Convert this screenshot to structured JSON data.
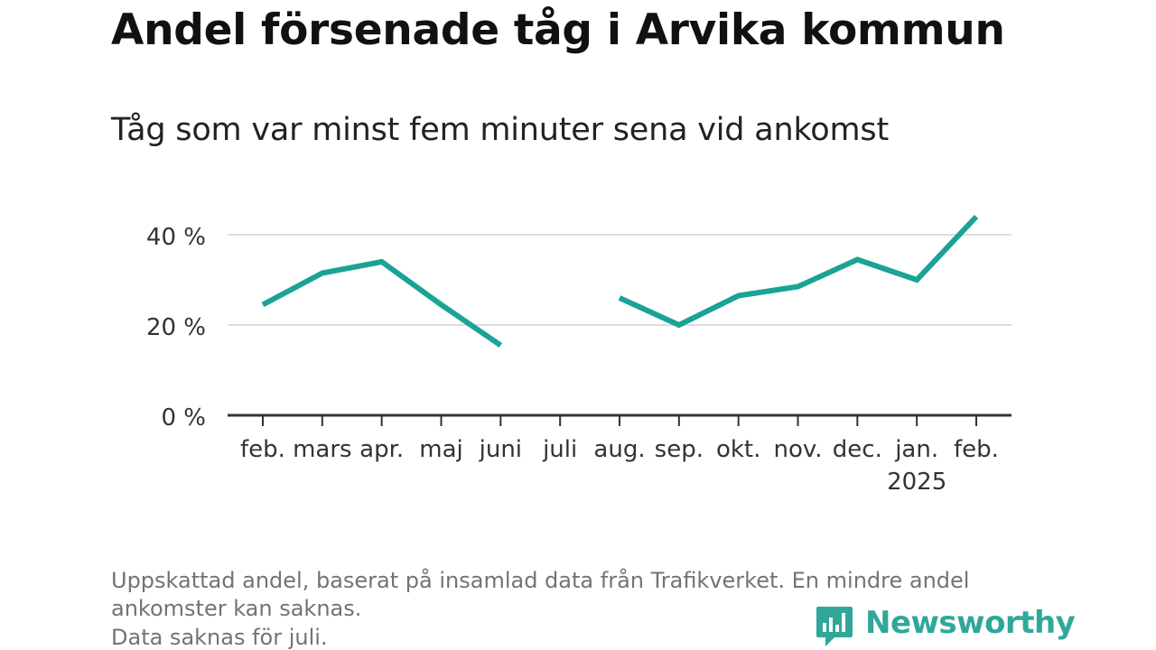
{
  "title": "Andel försenade tåg i Arvika kommun",
  "subtitle": "Tåg som var minst fem minuter sena vid ankomst",
  "notes": [
    "Uppskattad andel, baserat på insamlad data från Trafikverket. En mindre andel",
    "ankomster kan saknas.",
    "Data saknas för juli."
  ],
  "brand": {
    "name": "Newsworthy",
    "logo_icon": "newsworthy-logo-icon",
    "color": "#2fa89a"
  },
  "chart_data": {
    "type": "line",
    "categories": [
      "feb.",
      "mars",
      "apr.",
      "maj",
      "juni",
      "juli",
      "aug.",
      "sep.",
      "okt.",
      "nov.",
      "dec.",
      "jan.",
      "feb."
    ],
    "year_label": {
      "index": 11,
      "text": "2025"
    },
    "series": [
      {
        "values": [
          24.5,
          31.5,
          34,
          24.5,
          15.5,
          null,
          26,
          20,
          26.5,
          28.5,
          34.5,
          30,
          44
        ],
        "color": "#1aa396"
      }
    ],
    "yticks": [
      0,
      20,
      40
    ],
    "ytick_labels": [
      "0 %",
      "20 %",
      "40 %"
    ],
    "ylim": [
      0,
      44
    ],
    "grid": true,
    "xlabel": "",
    "ylabel": ""
  }
}
